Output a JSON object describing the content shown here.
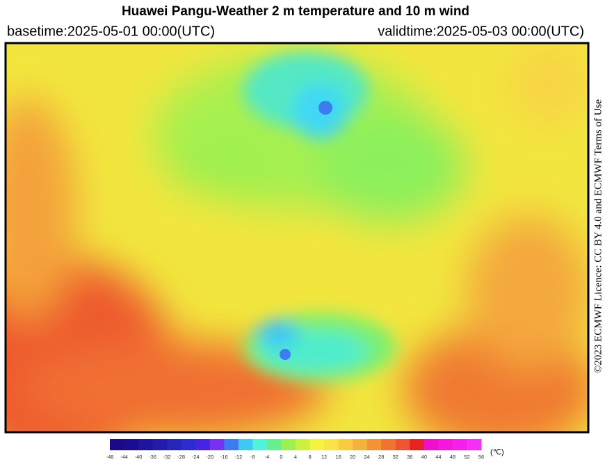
{
  "header": {
    "title": "Huawei Pangu-Weather  2 m temperature and 10 m wind",
    "basetime": "basetime:2025-05-01 00:00(UTC)",
    "validtime": "validtime:2025-05-03 00:00(UTC)"
  },
  "licence": "©2023 ECMWF Licence: CC BY 4.0 and ECMWF  Terms of Use",
  "colorbar": {
    "unit": "(℃)",
    "ticks": [
      -48,
      -44,
      -40,
      -36,
      -32,
      -28,
      -24,
      -20,
      -16,
      -12,
      -8,
      -4,
      0,
      4,
      8,
      12,
      16,
      20,
      24,
      28,
      32,
      36,
      40,
      44,
      48,
      52,
      56
    ],
    "colors": [
      "#1a0a88",
      "#1c0c94",
      "#20149c",
      "#221ca8",
      "#2626b8",
      "#2c2cd0",
      "#4424e0",
      "#7832f0",
      "#3c7cf0",
      "#40c8f4",
      "#50f4dc",
      "#64f08c",
      "#9cf050",
      "#ccf040",
      "#f4f440",
      "#f8e444",
      "#f8cc40",
      "#f4b23c",
      "#f29434",
      "#f07430",
      "#ee5430",
      "#e82222",
      "#f010cc",
      "#f418dc",
      "#f420ec",
      "#f430f6"
    ]
  }
}
